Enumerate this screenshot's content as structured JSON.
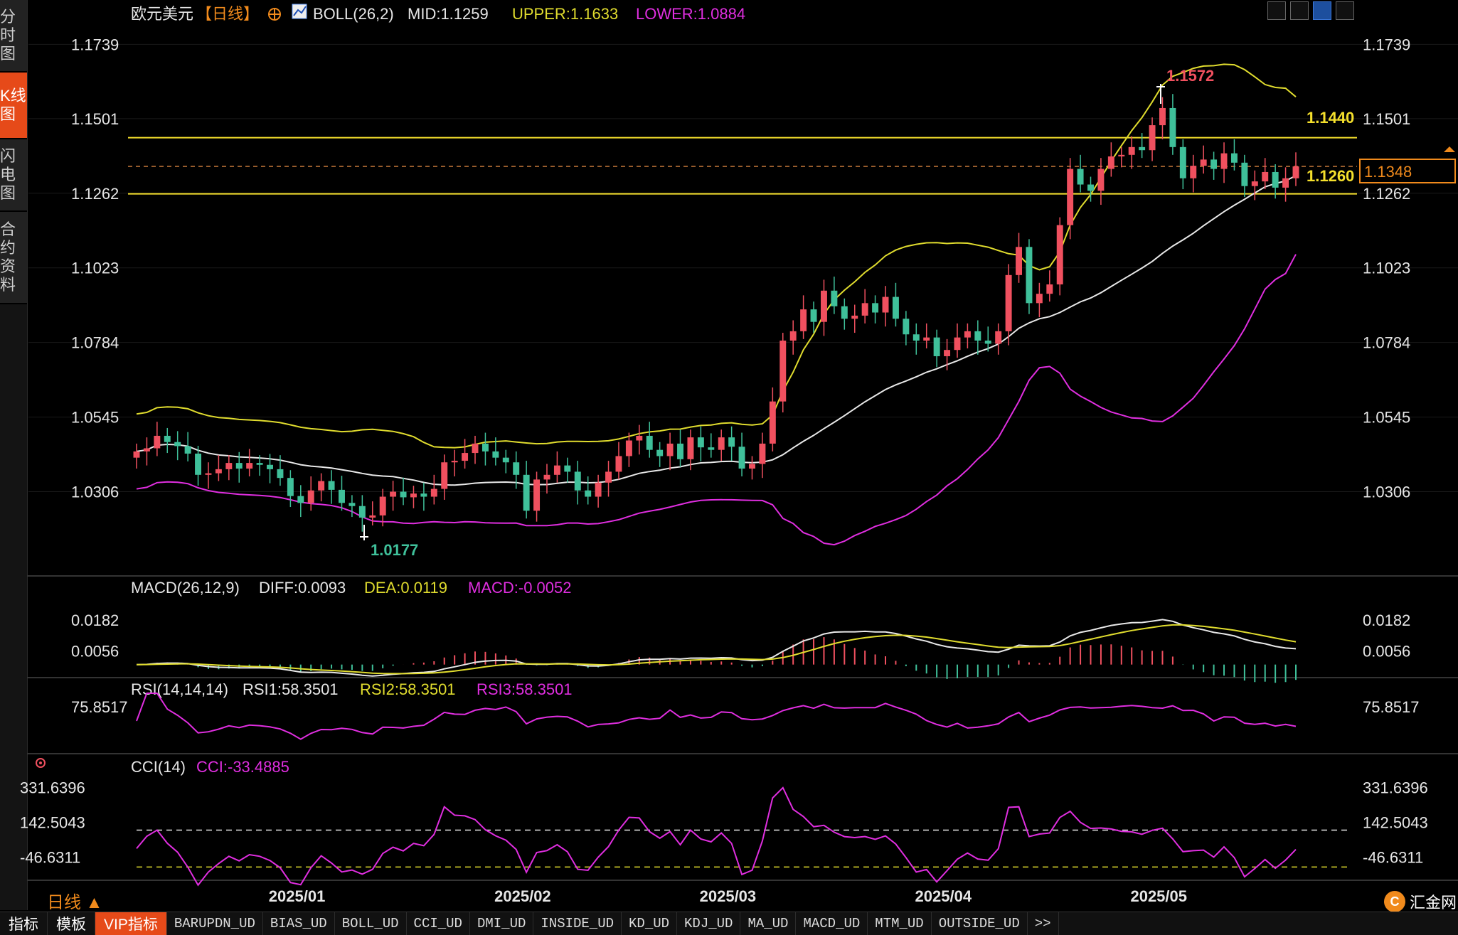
{
  "sidebar": {
    "tabs": [
      {
        "label": "分时图",
        "active": false
      },
      {
        "label": "K线图",
        "active": true
      },
      {
        "label": "闪电图",
        "active": false
      },
      {
        "label": "合约资料",
        "active": false
      }
    ]
  },
  "header": {
    "symbol": "欧元美元",
    "period_tag": "【日线】",
    "boll": {
      "label": "BOLL(26,2)",
      "mid": "MID:1.1259",
      "upper": "UPPER:1.1633",
      "lower": "LOWER:1.0884"
    }
  },
  "macd_legend": {
    "label": "MACD(26,12,9)",
    "diff": "DIFF:0.0093",
    "dea": "DEA:0.0119",
    "macd": "MACD:-0.0052"
  },
  "rsi_legend": {
    "label": "RSI(14,14,14)",
    "rsi1": "RSI1:58.3501",
    "rsi2": "RSI2:58.3501",
    "rsi3": "RSI3:58.3501"
  },
  "cci_legend": {
    "label": "CCI(14)",
    "cci": "CCI:-33.4885"
  },
  "period_label": "日线 ▲",
  "bottom_bar": {
    "items": [
      "指标",
      "模板",
      "VIP指标",
      "BARUPDN_UD",
      "BIAS_UD",
      "BOLL_UD",
      "CCI_UD",
      "DMI_UD",
      "INSIDE_UD",
      "KD_UD",
      "KDJ_UD",
      "MA_UD",
      "MACD_UD",
      "MTM_UD",
      "OUTSIDE_UD",
      ">>"
    ]
  },
  "logo": {
    "text": "汇金网"
  },
  "colors": {
    "up": "#f0505f",
    "down": "#3fc09a",
    "mid": "#e8e8e8",
    "upper": "#e0dc2e",
    "lower": "#e02ee0",
    "accent": "#e64a19"
  },
  "chart_data": [
    {
      "type": "candlestick",
      "title": "欧元美元",
      "y_ticks": [
        "1.1739",
        "1.1501",
        "1.1262",
        "1.1023",
        "1.0784",
        "1.0545",
        "1.0306"
      ],
      "y_range": [
        1.015,
        1.179
      ],
      "x_labels": [
        "2025/01",
        "2025/02",
        "2025/03",
        "2025/04",
        "2025/05"
      ],
      "x_label_index": [
        16,
        38,
        58,
        79,
        100
      ],
      "annotations": {
        "high": "1.1572",
        "low": "1.0177",
        "last_price": "1.1348",
        "level_upper": "1.1440",
        "level_lower": "1.1260"
      },
      "levels": [
        1.144,
        1.126,
        1.1348
      ],
      "close": [
        1.0435,
        1.0445,
        1.0485,
        1.0465,
        1.0452,
        1.0428,
        1.036,
        1.0365,
        1.0378,
        1.0398,
        1.038,
        1.0398,
        1.0392,
        1.0378,
        1.035,
        1.0292,
        1.027,
        1.031,
        1.034,
        1.0312,
        1.027,
        1.026,
        1.0223,
        1.023,
        1.029,
        1.0306,
        1.0288,
        1.03,
        1.029,
        1.0315,
        1.04,
        1.0405,
        1.043,
        1.046,
        1.0435,
        1.0415,
        1.04,
        1.036,
        1.0245,
        1.0345,
        1.036,
        1.039,
        1.037,
        1.031,
        1.029,
        1.0335,
        1.037,
        1.042,
        1.047,
        1.0485,
        1.044,
        1.042,
        1.046,
        1.041,
        1.048,
        1.0448,
        1.044,
        1.048,
        1.045,
        1.038,
        1.0395,
        1.046,
        1.0595,
        1.079,
        1.082,
        1.089,
        1.085,
        1.095,
        1.09,
        1.086,
        1.087,
        1.091,
        1.088,
        1.093,
        1.086,
        1.081,
        1.079,
        1.08,
        1.074,
        1.076,
        1.08,
        1.082,
        1.079,
        1.078,
        1.082,
        1.1,
        1.109,
        1.091,
        1.094,
        1.097,
        1.116,
        1.134,
        1.129,
        1.127,
        1.134,
        1.138,
        1.1385,
        1.141,
        1.14,
        1.148,
        1.1535,
        1.141,
        1.131,
        1.135,
        1.137,
        1.134,
        1.139,
        1.136,
        1.1285,
        1.13,
        1.133,
        1.128,
        1.131,
        1.1348
      ],
      "bollinger": {
        "upper_last": 1.1633,
        "mid_last": 1.1259,
        "lower_last": 1.0884
      }
    },
    {
      "type": "line",
      "title": "MACD(26,12,9)",
      "y_ticks": [
        "0.0182",
        "0.0056"
      ],
      "series": [
        {
          "name": "DIFF",
          "last": 0.0093
        },
        {
          "name": "DEA",
          "last": 0.0119
        },
        {
          "name": "MACD",
          "last": -0.0052
        }
      ]
    },
    {
      "type": "line",
      "title": "RSI(14,14,14)",
      "y_ticks": [
        "75.8517"
      ],
      "series": [
        {
          "name": "RSI1",
          "last": 58.3501
        },
        {
          "name": "RSI2",
          "last": 58.3501
        },
        {
          "name": "RSI3",
          "last": 58.3501
        }
      ]
    },
    {
      "type": "line",
      "title": "CCI(14)",
      "y_ticks": [
        "331.6396",
        "142.5043",
        "-46.6311"
      ],
      "series": [
        {
          "name": "CCI",
          "last": -33.4885
        }
      ]
    }
  ]
}
